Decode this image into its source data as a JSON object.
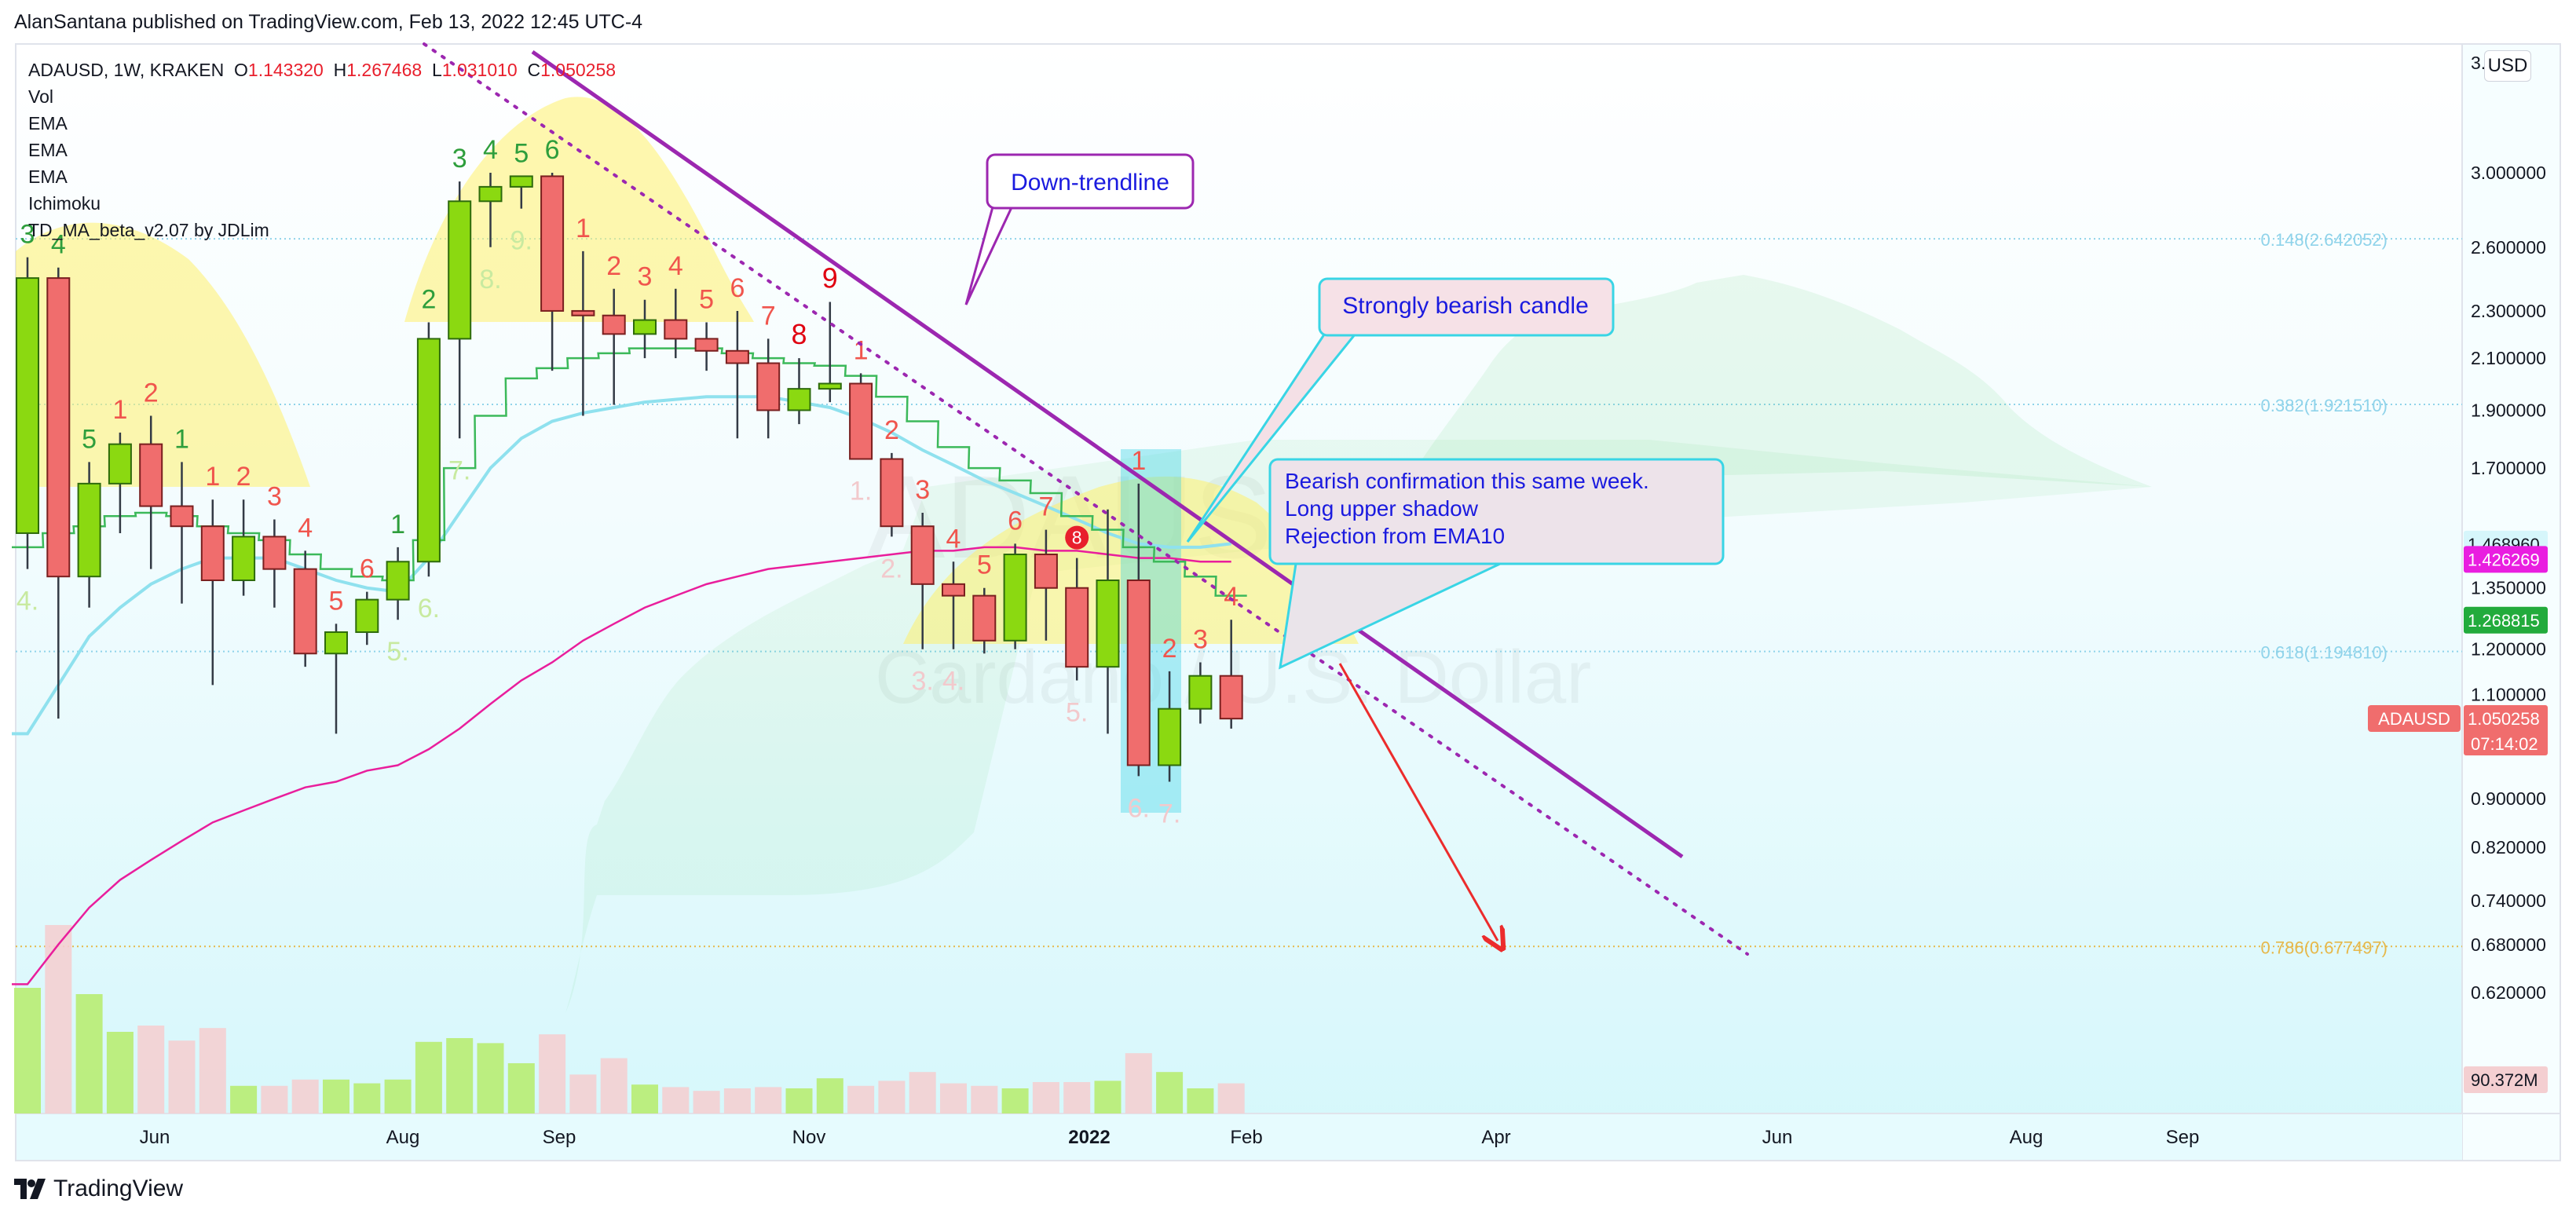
{
  "header": {
    "text": "AlanSantana published on TradingView.com, Feb 13, 2022 12:45 UTC-4"
  },
  "footer": {
    "brand": "TradingView"
  },
  "currency_button": "USD",
  "legend": {
    "symbol_line": "ADAUSD, 1W, KRAKEN",
    "o_label": "O",
    "o": "1.143320",
    "h_label": "H",
    "h": "1.267468",
    "l_label": "L",
    "l": "1.031010",
    "c_label": "C",
    "c": "1.050258",
    "indicators": [
      "Vol",
      "EMA",
      "EMA",
      "EMA",
      "Ichimoku",
      "TD_MA_beta_v2.07 by JDLim"
    ]
  },
  "watermark": {
    "ticker": "ADAUSD, 1W",
    "name": "Cardano / U.S. Dollar"
  },
  "colors": {
    "bg_top": "#ffffff",
    "bg_bottom": "#dff8fc",
    "up": "#8bd911",
    "down": "#f06d6d",
    "td_up": "#2e9e3c",
    "td_down": "#f0554d",
    "trend": "#9c27b0",
    "ema_pink": "#e91e9c",
    "ema_cyan": "#8fe1ee",
    "callout_border": "#39d5e5",
    "callout_text": "#1a1adf",
    "arrow": "#ec2c2c"
  },
  "annotations": {
    "down_trendline": "Down-trendline",
    "bearish_candle": "Strongly bearish candle",
    "confirmation": [
      "Bearish confirmation this same week.",
      "Long upper shadow",
      "Rejection from EMA10"
    ]
  },
  "chart_data": {
    "type": "candlestick",
    "symbol": "ADAUSD",
    "interval": "1W",
    "exchange": "KRAKEN",
    "y_scale": "log",
    "y_ticks": [
      "3.000000",
      "2.600000",
      "2.300000",
      "2.100000",
      "1.900000",
      "1.700000",
      "1.350000",
      "1.200000",
      "1.100000",
      "0.900000",
      "0.820000",
      "0.740000",
      "0.680000",
      "0.620000"
    ],
    "y_top_label": "3.",
    "x_ticks": [
      "Jun",
      "Aug",
      "Sep",
      "Nov",
      "2022",
      "Feb",
      "Apr",
      "Jun",
      "Aug",
      "Sep"
    ],
    "fib_levels": [
      {
        "label": "0.148(2.642052)",
        "value": 2.642052,
        "color": "#8fd3ea"
      },
      {
        "label": "0.382(1.921510)",
        "value": 1.92151,
        "color": "#8fd3ea"
      },
      {
        "label": "0.618(1.194810)",
        "value": 1.19481,
        "color": "#8fd3ea"
      },
      {
        "label": "0.786(0.677497)",
        "value": 0.677497,
        "color": "#e6b84a"
      }
    ],
    "price_badges": [
      {
        "label": "1.468960",
        "value": 1.46896,
        "bg": "#d6f6fb",
        "fg": "#131722"
      },
      {
        "label": "1.426269",
        "value": 1.426269,
        "bg": "#e91ee0",
        "fg": "#ffffff"
      },
      {
        "label": "1.268815",
        "value": 1.268815,
        "bg": "#22ab3c",
        "fg": "#ffffff"
      },
      {
        "label": "1.050258",
        "value": 1.050258,
        "bg": "#f06d6d",
        "fg": "#ffffff",
        "name": "ADAUSD",
        "countdown": "07:14:02"
      }
    ],
    "volume_badge": "90.372M",
    "candles": [
      {
        "o": 1.5,
        "h": 2.55,
        "l": 1.4,
        "c": 2.45
      },
      {
        "o": 2.45,
        "h": 2.5,
        "l": 1.05,
        "c": 1.38
      },
      {
        "o": 1.38,
        "h": 1.72,
        "l": 1.3,
        "c": 1.65
      },
      {
        "o": 1.65,
        "h": 1.82,
        "l": 1.5,
        "c": 1.78
      },
      {
        "o": 1.78,
        "h": 1.88,
        "l": 1.4,
        "c": 1.58
      },
      {
        "o": 1.58,
        "h": 1.72,
        "l": 1.31,
        "c": 1.52
      },
      {
        "o": 1.52,
        "h": 1.6,
        "l": 1.12,
        "c": 1.37
      },
      {
        "o": 1.37,
        "h": 1.6,
        "l": 1.33,
        "c": 1.49
      },
      {
        "o": 1.49,
        "h": 1.54,
        "l": 1.3,
        "c": 1.4
      },
      {
        "o": 1.4,
        "h": 1.45,
        "l": 1.16,
        "c": 1.19
      },
      {
        "o": 1.19,
        "h": 1.26,
        "l": 1.02,
        "c": 1.24
      },
      {
        "o": 1.24,
        "h": 1.34,
        "l": 1.21,
        "c": 1.32
      },
      {
        "o": 1.32,
        "h": 1.46,
        "l": 1.27,
        "c": 1.42
      },
      {
        "o": 1.42,
        "h": 2.25,
        "l": 1.38,
        "c": 2.18
      },
      {
        "o": 2.18,
        "h": 2.95,
        "l": 1.8,
        "c": 2.84
      },
      {
        "o": 2.84,
        "h": 3.0,
        "l": 2.6,
        "c": 2.92
      },
      {
        "o": 2.92,
        "h": 2.98,
        "l": 2.8,
        "c": 2.98
      },
      {
        "o": 2.98,
        "h": 3.0,
        "l": 2.05,
        "c": 2.3
      },
      {
        "o": 2.3,
        "h": 2.58,
        "l": 1.88,
        "c": 2.28
      },
      {
        "o": 2.28,
        "h": 2.4,
        "l": 1.92,
        "c": 2.2
      },
      {
        "o": 2.2,
        "h": 2.35,
        "l": 2.1,
        "c": 2.26
      },
      {
        "o": 2.26,
        "h": 2.4,
        "l": 2.1,
        "c": 2.18
      },
      {
        "o": 2.18,
        "h": 2.25,
        "l": 2.05,
        "c": 2.13
      },
      {
        "o": 2.13,
        "h": 2.3,
        "l": 1.8,
        "c": 2.08
      },
      {
        "o": 2.08,
        "h": 2.18,
        "l": 1.8,
        "c": 1.9
      },
      {
        "o": 1.9,
        "h": 2.1,
        "l": 1.85,
        "c": 1.98
      },
      {
        "o": 1.98,
        "h": 2.34,
        "l": 1.93,
        "c": 2.0
      },
      {
        "o": 2.0,
        "h": 2.04,
        "l": 1.73,
        "c": 1.73
      },
      {
        "o": 1.73,
        "h": 1.75,
        "l": 1.49,
        "c": 1.52
      },
      {
        "o": 1.52,
        "h": 1.56,
        "l": 1.2,
        "c": 1.36
      },
      {
        "o": 1.36,
        "h": 1.42,
        "l": 1.2,
        "c": 1.33
      },
      {
        "o": 1.33,
        "h": 1.35,
        "l": 1.19,
        "c": 1.22
      },
      {
        "o": 1.22,
        "h": 1.47,
        "l": 1.2,
        "c": 1.44
      },
      {
        "o": 1.44,
        "h": 1.51,
        "l": 1.22,
        "c": 1.35
      },
      {
        "o": 1.35,
        "h": 1.43,
        "l": 1.13,
        "c": 1.16
      },
      {
        "o": 1.16,
        "h": 1.57,
        "l": 1.02,
        "c": 1.37
      },
      {
        "o": 1.37,
        "h": 1.65,
        "l": 0.94,
        "c": 0.96
      },
      {
        "o": 0.96,
        "h": 1.15,
        "l": 0.93,
        "c": 1.07
      },
      {
        "o": 1.07,
        "h": 1.17,
        "l": 1.04,
        "c": 1.14
      },
      {
        "o": 1.14,
        "h": 1.27,
        "l": 1.03,
        "c": 1.05
      }
    ],
    "volume": [
      1.0,
      1.5,
      0.95,
      0.65,
      0.7,
      0.58,
      0.68,
      0.22,
      0.22,
      0.27,
      0.27,
      0.24,
      0.27,
      0.57,
      0.6,
      0.56,
      0.4,
      0.63,
      0.31,
      0.44,
      0.23,
      0.21,
      0.18,
      0.2,
      0.21,
      0.2,
      0.28,
      0.22,
      0.26,
      0.33,
      0.24,
      0.22,
      0.2,
      0.25,
      0.25,
      0.26,
      0.48,
      0.33,
      0.2,
      0.24
    ],
    "ema_fast": [
      1.46,
      1.5,
      1.52,
      1.55,
      1.56,
      1.55,
      1.52,
      1.5,
      1.48,
      1.44,
      1.4,
      1.38,
      1.37,
      1.48,
      1.7,
      1.88,
      2.02,
      2.06,
      2.1,
      2.12,
      2.14,
      2.14,
      2.14,
      2.12,
      2.1,
      2.08,
      2.07,
      2.03,
      1.95,
      1.86,
      1.77,
      1.7,
      1.66,
      1.62,
      1.55,
      1.51,
      1.46,
      1.42,
      1.38,
      1.33
    ],
    "ema_cyan": [
      1.02,
      1.12,
      1.23,
      1.3,
      1.36,
      1.4,
      1.43,
      1.43,
      1.43,
      1.4,
      1.37,
      1.35,
      1.34,
      1.43,
      1.56,
      1.7,
      1.8,
      1.86,
      1.89,
      1.91,
      1.93,
      1.94,
      1.95,
      1.95,
      1.95,
      1.93,
      1.91,
      1.87,
      1.82,
      1.76,
      1.71,
      1.66,
      1.62,
      1.58,
      1.54,
      1.5,
      1.47,
      1.46,
      1.46,
      1.47
    ],
    "ema_pink": [
      0.63,
      0.68,
      0.73,
      0.77,
      0.8,
      0.83,
      0.86,
      0.88,
      0.9,
      0.92,
      0.93,
      0.95,
      0.96,
      0.99,
      1.03,
      1.08,
      1.13,
      1.17,
      1.22,
      1.26,
      1.3,
      1.33,
      1.36,
      1.38,
      1.4,
      1.41,
      1.42,
      1.43,
      1.44,
      1.45,
      1.45,
      1.46,
      1.46,
      1.45,
      1.45,
      1.44,
      1.43,
      1.43,
      1.42,
      1.42
    ],
    "td_labels": [
      {
        "i": 0,
        "t": "3",
        "dir": "up",
        "pos": "above"
      },
      {
        "i": 1,
        "t": "4",
        "dir": "up",
        "pos": "above"
      },
      {
        "i": 2,
        "t": "5",
        "dir": "up",
        "pos": "above"
      },
      {
        "i": 3,
        "t": "1",
        "dir": "down",
        "pos": "above"
      },
      {
        "i": 4,
        "t": "2",
        "dir": "down",
        "pos": "above"
      },
      {
        "i": 5,
        "t": "1",
        "dir": "up",
        "pos": "above"
      },
      {
        "i": 6,
        "t": "1",
        "dir": "down",
        "pos": "above"
      },
      {
        "i": 7,
        "t": "2",
        "dir": "down",
        "pos": "above"
      },
      {
        "i": 8,
        "t": "3",
        "dir": "down",
        "pos": "above"
      },
      {
        "i": 9,
        "t": "4",
        "dir": "down",
        "pos": "above"
      },
      {
        "i": 10,
        "t": "5",
        "dir": "down",
        "pos": "above"
      },
      {
        "i": 11,
        "t": "6",
        "dir": "down",
        "pos": "above"
      },
      {
        "i": 12,
        "t": "1",
        "dir": "up",
        "pos": "above"
      },
      {
        "i": 13,
        "t": "2",
        "dir": "up",
        "pos": "above"
      },
      {
        "i": 14,
        "t": "3",
        "dir": "up",
        "pos": "above"
      },
      {
        "i": 15,
        "t": "4",
        "dir": "up",
        "pos": "above"
      },
      {
        "i": 16,
        "t": "5",
        "dir": "up",
        "pos": "above"
      },
      {
        "i": 17,
        "t": "6",
        "dir": "up",
        "pos": "above"
      },
      {
        "i": 18,
        "t": "1",
        "dir": "down",
        "pos": "above"
      },
      {
        "i": 19,
        "t": "2",
        "dir": "down",
        "pos": "above"
      },
      {
        "i": 20,
        "t": "3",
        "dir": "down",
        "pos": "above"
      },
      {
        "i": 21,
        "t": "4",
        "dir": "down",
        "pos": "above"
      },
      {
        "i": 22,
        "t": "5",
        "dir": "down",
        "pos": "above"
      },
      {
        "i": 23,
        "t": "6",
        "dir": "down",
        "pos": "above"
      },
      {
        "i": 24,
        "t": "7",
        "dir": "down",
        "pos": "above"
      },
      {
        "i": 25,
        "t": "8",
        "dir": "red",
        "pos": "above"
      },
      {
        "i": 26,
        "t": "9",
        "dir": "red",
        "pos": "above"
      },
      {
        "i": 27,
        "t": "1",
        "dir": "down",
        "pos": "above"
      },
      {
        "i": 28,
        "t": "2",
        "dir": "down",
        "pos": "above"
      },
      {
        "i": 29,
        "t": "3",
        "dir": "down",
        "pos": "above"
      },
      {
        "i": 30,
        "t": "4",
        "dir": "down",
        "pos": "above"
      },
      {
        "i": 31,
        "t": "5",
        "dir": "down",
        "pos": "above"
      },
      {
        "i": 32,
        "t": "6",
        "dir": "down",
        "pos": "above"
      },
      {
        "i": 33,
        "t": "7",
        "dir": "down",
        "pos": "above"
      },
      {
        "i": 34,
        "t": "8",
        "dir": "circle",
        "pos": "above"
      },
      {
        "i": 36,
        "t": "1",
        "dir": "down",
        "pos": "above"
      },
      {
        "i": 37,
        "t": "2",
        "dir": "down",
        "pos": "above"
      },
      {
        "i": 38,
        "t": "3",
        "dir": "down",
        "pos": "above"
      },
      {
        "i": 39,
        "t": "4",
        "dir": "down",
        "pos": "above"
      },
      {
        "i": 0,
        "t": "4.",
        "dir": "faint-up",
        "pos": "below"
      },
      {
        "i": 12,
        "t": "5.",
        "dir": "faint-up",
        "pos": "below"
      },
      {
        "i": 13,
        "t": "6.",
        "dir": "faint-up",
        "pos": "below"
      },
      {
        "i": 14,
        "t": "7.",
        "dir": "faint-up",
        "pos": "below"
      },
      {
        "i": 15,
        "t": "8.",
        "dir": "faint-up",
        "pos": "below"
      },
      {
        "i": 16,
        "t": "9.",
        "dir": "faint-up",
        "pos": "below"
      },
      {
        "i": 27,
        "t": "1.",
        "dir": "faint-down",
        "pos": "below"
      },
      {
        "i": 28,
        "t": "2.",
        "dir": "faint-down",
        "pos": "below"
      },
      {
        "i": 29,
        "t": "3.",
        "dir": "faint-down",
        "pos": "below"
      },
      {
        "i": 30,
        "t": "4.",
        "dir": "faint-down",
        "pos": "below"
      },
      {
        "i": 34,
        "t": "5.",
        "dir": "faint-down",
        "pos": "below"
      },
      {
        "i": 36,
        "t": "6.",
        "dir": "faint-down",
        "pos": "below"
      },
      {
        "i": 37,
        "t": "7.",
        "dir": "faint-down",
        "pos": "below"
      }
    ]
  }
}
